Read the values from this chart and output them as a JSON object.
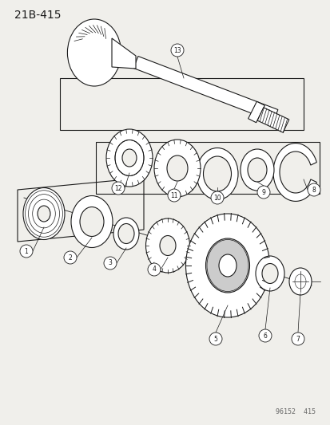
{
  "title": "21B-415",
  "watermark": "96152  415",
  "bg": "#f0efeb",
  "lc": "#1a1a1a",
  "white": "#ffffff",
  "fig_w": 4.14,
  "fig_h": 5.33,
  "dpi": 100
}
